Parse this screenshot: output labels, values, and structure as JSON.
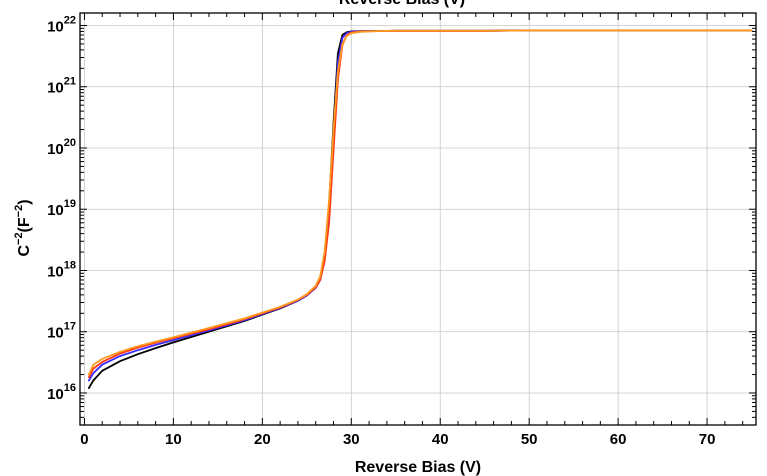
{
  "chart_data": {
    "type": "line",
    "top_title": "Reverse Bias (V)",
    "xlabel": "Reverse Bias (V)",
    "ylabel_base": "C",
    "ylabel_exp": "−2",
    "ylabel_unit_open": "(F",
    "ylabel_unit_exp": "−2",
    "ylabel_unit_close": ")",
    "xlim": [
      -0.5,
      75.5
    ],
    "ylim": [
      3000000000000000.0,
      1.6e+22
    ],
    "y_scale": "log",
    "grid": true,
    "x_ticks": [
      0,
      10,
      20,
      30,
      40,
      50,
      60,
      70
    ],
    "x_tick_labels": [
      "0",
      "10",
      "20",
      "30",
      "40",
      "50",
      "60",
      "70"
    ],
    "y_ticks": [
      {
        "value": 1e+16,
        "base": "10",
        "exp": "16"
      },
      {
        "value": 1e+17,
        "base": "10",
        "exp": "17"
      },
      {
        "value": 1e+18,
        "base": "10",
        "exp": "18"
      },
      {
        "value": 1e+19,
        "base": "10",
        "exp": "19"
      },
      {
        "value": 1e+20,
        "base": "10",
        "exp": "20"
      },
      {
        "value": 1e+21,
        "base": "10",
        "exp": "21"
      },
      {
        "value": 1e+22,
        "base": "10",
        "exp": "22"
      }
    ],
    "series": [
      {
        "color": "#000000",
        "x": [
          0.5,
          1,
          2,
          4,
          6,
          8,
          10,
          14,
          18,
          22,
          24,
          25,
          26,
          26.5,
          27,
          27.5,
          28,
          28.5,
          29,
          29.5,
          30,
          31,
          33,
          35,
          40,
          45,
          50,
          55,
          60,
          65,
          70,
          75
        ],
        "y": [
          1.2e+16,
          1.6e+16,
          2.3e+16,
          3.3e+16,
          4.3e+16,
          5.4e+16,
          6.7e+16,
          1e+17,
          1.5e+17,
          2.4e+17,
          3.2e+17,
          3.9e+17,
          5.3e+17,
          7.5e+17,
          1.8e+18,
          1.2e+19,
          2.5e+20,
          3.5e+21,
          7e+21,
          7.8e+21,
          8e+21,
          8.1e+21,
          8.1e+21,
          8.2e+21,
          8.2e+21,
          8.2e+21,
          8.3e+21,
          8.3e+21,
          8.3e+21,
          8.3e+21,
          8.3e+21,
          8.3e+21
        ]
      },
      {
        "color": "#3a2cff",
        "x": [
          0.5,
          1,
          2,
          4,
          6,
          8,
          10,
          14,
          18,
          22,
          24,
          25,
          26,
          26.5,
          27,
          27.5,
          28,
          28.5,
          29,
          29.5,
          30,
          31,
          33,
          35,
          40,
          45,
          50,
          55,
          60,
          65,
          70,
          75
        ],
        "y": [
          1.6e+16,
          2.1e+16,
          2.9e+16,
          4e+16,
          5e+16,
          6.1e+16,
          7.3e+16,
          1.05e+17,
          1.55e+17,
          2.45e+17,
          3.2e+17,
          3.9e+17,
          5.2e+17,
          7e+17,
          1.6e+18,
          9e+18,
          1.6e+20,
          2.5e+21,
          6.3e+21,
          7.6e+21,
          7.9e+21,
          8.1e+21,
          8.1e+21,
          8.2e+21,
          8.2e+21,
          8.2e+21,
          8.3e+21,
          8.3e+21,
          8.3e+21,
          8.3e+21,
          8.3e+21,
          8.3e+21
        ]
      },
      {
        "color": "#ff3a14",
        "x": [
          0.5,
          1,
          2,
          4,
          6,
          8,
          10,
          14,
          18,
          22,
          24,
          25,
          26,
          26.5,
          27,
          27.5,
          28,
          28.5,
          29,
          29.5,
          30,
          31,
          33,
          35,
          40,
          45,
          50,
          55,
          60,
          65,
          70,
          75
        ],
        "y": [
          1.8e+16,
          2.5e+16,
          3.2e+16,
          4.4e+16,
          5.5e+16,
          6.6e+16,
          7.8e+16,
          1.1e+17,
          1.6e+17,
          2.5e+17,
          3.3e+17,
          4e+17,
          5.3e+17,
          7e+17,
          1.4e+18,
          6e+18,
          9e+19,
          1.3e+21,
          4.8e+21,
          7e+21,
          7.7e+21,
          8e+21,
          8.1e+21,
          8.2e+21,
          8.2e+21,
          8.2e+21,
          8.3e+21,
          8.3e+21,
          8.3e+21,
          8.3e+21,
          8.3e+21,
          8.3e+21
        ]
      },
      {
        "color": "#ff9a1e",
        "x": [
          0.5,
          1,
          2,
          4,
          6,
          8,
          10,
          14,
          18,
          22,
          24,
          25,
          26,
          26.5,
          27,
          27.5,
          28,
          28.5,
          29,
          29.5,
          30,
          31,
          33,
          35,
          40,
          45,
          50,
          55,
          60,
          65,
          70,
          75
        ],
        "y": [
          2e+16,
          2.9e+16,
          3.6e+16,
          4.7e+16,
          5.8e+16,
          6.9e+16,
          8.1e+16,
          1.15e+17,
          1.65e+17,
          2.55e+17,
          3.35e+17,
          4.1e+17,
          5.6e+17,
          8e+17,
          2e+18,
          1.4e+19,
          2e+20,
          1.8e+21,
          5e+21,
          6.8e+21,
          7.5e+21,
          7.9e+21,
          8.1e+21,
          8.2e+21,
          8.2e+21,
          8.2e+21,
          8.3e+21,
          8.3e+21,
          8.3e+21,
          8.3e+21,
          8.3e+21,
          8.3e+21
        ]
      }
    ]
  }
}
